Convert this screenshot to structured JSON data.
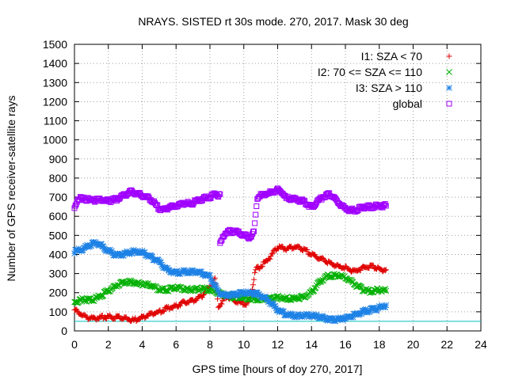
{
  "chart_data": {
    "type": "scatter",
    "title": "NRAYS. SISTED rt 30s mode. 270, 2017. Mask 30 deg",
    "xlabel": "GPS time [hours of doy 270, 2017]",
    "ylabel": "Number of GPS receiver-satellite rays",
    "xlim": [
      0,
      24
    ],
    "ylim": [
      0,
      1500
    ],
    "x_ticks": [
      0,
      2,
      4,
      6,
      8,
      10,
      12,
      14,
      16,
      18,
      20,
      22,
      24
    ],
    "y_ticks": [
      0,
      100,
      200,
      300,
      400,
      500,
      600,
      700,
      800,
      900,
      1000,
      1100,
      1200,
      1300,
      1400,
      1500
    ],
    "grid": true,
    "legend_position": "top-right",
    "reference_line": {
      "y": 50,
      "color": "#00c0c0"
    },
    "series": [
      {
        "name": "I1: SZA < 70",
        "marker": "+",
        "color": "#e00000",
        "points": [
          [
            0,
            110
          ],
          [
            0.5,
            80
          ],
          [
            1,
            65
          ],
          [
            1.5,
            70
          ],
          [
            2,
            75
          ],
          [
            2.5,
            70
          ],
          [
            3,
            65
          ],
          [
            3.5,
            55
          ],
          [
            4,
            70
          ],
          [
            4.5,
            90
          ],
          [
            5,
            100
          ],
          [
            5.5,
            120
          ],
          [
            6,
            130
          ],
          [
            6.5,
            150
          ],
          [
            7,
            160
          ],
          [
            7.5,
            180
          ],
          [
            8,
            230
          ],
          [
            8.3,
            270
          ],
          [
            8.5,
            130
          ],
          [
            9,
            180
          ],
          [
            9.5,
            160
          ],
          [
            10,
            140
          ],
          [
            10.3,
            150
          ],
          [
            10.5,
            220
          ],
          [
            10.7,
            320
          ],
          [
            11,
            340
          ],
          [
            11.5,
            380
          ],
          [
            12,
            440
          ],
          [
            12.5,
            430
          ],
          [
            13,
            440
          ],
          [
            13.5,
            430
          ],
          [
            14,
            400
          ],
          [
            14.5,
            380
          ],
          [
            15,
            360
          ],
          [
            15.5,
            340
          ],
          [
            16,
            330
          ],
          [
            16.5,
            310
          ],
          [
            17,
            330
          ],
          [
            17.5,
            340
          ],
          [
            18,
            320
          ],
          [
            18.4,
            320
          ]
        ]
      },
      {
        "name": "I2: 70 <= SZA <= 110",
        "marker": "x",
        "color": "#00b000",
        "points": [
          [
            0,
            150
          ],
          [
            0.5,
            165
          ],
          [
            1,
            160
          ],
          [
            1.5,
            180
          ],
          [
            2,
            210
          ],
          [
            2.5,
            240
          ],
          [
            3,
            255
          ],
          [
            3.5,
            255
          ],
          [
            4,
            245
          ],
          [
            4.5,
            240
          ],
          [
            5,
            215
          ],
          [
            5.5,
            215
          ],
          [
            6,
            225
          ],
          [
            6.5,
            220
          ],
          [
            7,
            215
          ],
          [
            7.5,
            220
          ],
          [
            8,
            215
          ],
          [
            8.3,
            210
          ],
          [
            8.5,
            200
          ],
          [
            9,
            185
          ],
          [
            9.5,
            175
          ],
          [
            10,
            170
          ],
          [
            10.5,
            165
          ],
          [
            11,
            165
          ],
          [
            11.5,
            170
          ],
          [
            12,
            175
          ],
          [
            12.5,
            170
          ],
          [
            13,
            170
          ],
          [
            13.5,
            175
          ],
          [
            14,
            200
          ],
          [
            14.5,
            260
          ],
          [
            15,
            290
          ],
          [
            15.5,
            290
          ],
          [
            16,
            280
          ],
          [
            16.5,
            250
          ],
          [
            17,
            215
          ],
          [
            17.5,
            205
          ],
          [
            18,
            215
          ],
          [
            18.4,
            210
          ]
        ]
      },
      {
        "name": "I3: SZA > 110",
        "marker": "*",
        "color": "#1e82e6",
        "points": [
          [
            0,
            415
          ],
          [
            0.5,
            430
          ],
          [
            1,
            455
          ],
          [
            1.3,
            460
          ],
          [
            1.6,
            445
          ],
          [
            2,
            420
          ],
          [
            2.5,
            395
          ],
          [
            3,
            405
          ],
          [
            3.5,
            415
          ],
          [
            4,
            410
          ],
          [
            4.5,
            390
          ],
          [
            5,
            360
          ],
          [
            5.5,
            320
          ],
          [
            6,
            305
          ],
          [
            6.5,
            310
          ],
          [
            7,
            310
          ],
          [
            7.5,
            305
          ],
          [
            8,
            285
          ],
          [
            8.5,
            200
          ],
          [
            9,
            185
          ],
          [
            9.5,
            190
          ],
          [
            10,
            200
          ],
          [
            10.5,
            200
          ],
          [
            11,
            185
          ],
          [
            11.5,
            155
          ],
          [
            12,
            110
          ],
          [
            12.5,
            85
          ],
          [
            13,
            80
          ],
          [
            13.5,
            80
          ],
          [
            14,
            80
          ],
          [
            14.5,
            75
          ],
          [
            15,
            60
          ],
          [
            15.5,
            60
          ],
          [
            16,
            65
          ],
          [
            16.5,
            80
          ],
          [
            17,
            100
          ],
          [
            17.5,
            110
          ],
          [
            18,
            120
          ],
          [
            18.4,
            135
          ]
        ]
      },
      {
        "name": "global",
        "marker": "square",
        "color": "#a000ff",
        "points": [
          [
            0,
            640
          ],
          [
            0.1,
            665
          ],
          [
            0.2,
            695
          ],
          [
            0.5,
            690
          ],
          [
            1,
            685
          ],
          [
            1.5,
            685
          ],
          [
            2,
            680
          ],
          [
            2.5,
            690
          ],
          [
            3,
            710
          ],
          [
            3.3,
            730
          ],
          [
            3.6,
            720
          ],
          [
            4,
            710
          ],
          [
            4.5,
            690
          ],
          [
            5,
            640
          ],
          [
            5.3,
            630
          ],
          [
            5.6,
            650
          ],
          [
            6,
            655
          ],
          [
            6.5,
            665
          ],
          [
            7,
            670
          ],
          [
            7.5,
            690
          ],
          [
            8,
            700
          ],
          [
            8.3,
            720
          ],
          [
            8.6,
            705
          ],
          [
            8.6,
            450
          ],
          [
            8.8,
            500
          ],
          [
            9,
            520
          ],
          [
            9.5,
            520
          ],
          [
            10,
            500
          ],
          [
            10.3,
            490
          ],
          [
            10.6,
            515
          ],
          [
            10.8,
            700
          ],
          [
            11,
            710
          ],
          [
            11.5,
            720
          ],
          [
            12,
            740
          ],
          [
            12.3,
            720
          ],
          [
            12.5,
            695
          ],
          [
            13,
            690
          ],
          [
            13.5,
            680
          ],
          [
            14,
            650
          ],
          [
            14.5,
            690
          ],
          [
            15,
            720
          ],
          [
            15.3,
            700
          ],
          [
            15.6,
            670
          ],
          [
            16,
            640
          ],
          [
            16.5,
            630
          ],
          [
            17,
            645
          ],
          [
            17.5,
            650
          ],
          [
            18,
            655
          ],
          [
            18.4,
            655
          ]
        ]
      }
    ]
  }
}
